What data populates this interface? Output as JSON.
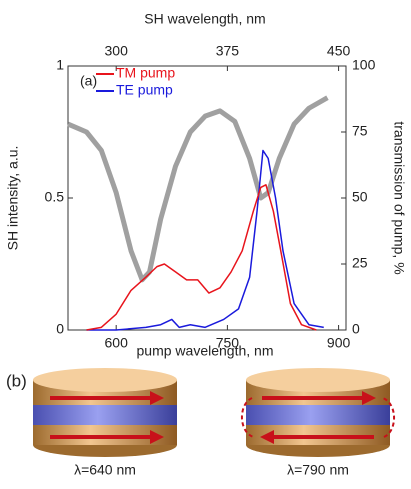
{
  "chart_data": {
    "type": "line",
    "xlabel": "pump wavelength, nm",
    "x2label": "SH wavelength, nm",
    "ylabel": "SH intensity, a.u.",
    "y2label": "transmission of pump, %",
    "annotations": {
      "panel_a": "(a)",
      "panel_b": "(b)",
      "left": "λ=640 nm",
      "right": "λ=790 nm"
    },
    "xlim": [
      535,
      910
    ],
    "xticks": [
      600,
      750,
      900
    ],
    "x2lim": [
      267.5,
      455
    ],
    "x2ticks": [
      300,
      375,
      450
    ],
    "ylim": [
      0,
      1
    ],
    "yticks": [
      0,
      0.5,
      1
    ],
    "y2lim": [
      0,
      100
    ],
    "y2ticks": [
      0,
      25,
      50,
      75,
      100
    ],
    "legend": "upper left",
    "series": [
      {
        "name": "TM pump",
        "color": "#e8141c",
        "x": [
          560,
          580,
          600,
          620,
          640,
          655,
          665,
          680,
          695,
          710,
          725,
          740,
          755,
          770,
          785,
          795,
          802,
          812,
          822,
          835,
          850,
          870
        ],
        "values": [
          0,
          0.01,
          0.06,
          0.15,
          0.2,
          0.24,
          0.25,
          0.22,
          0.19,
          0.19,
          0.14,
          0.16,
          0.22,
          0.3,
          0.45,
          0.54,
          0.55,
          0.45,
          0.3,
          0.1,
          0.02,
          0
        ]
      },
      {
        "name": "TE pump",
        "color": "#1a1adc",
        "x": [
          560,
          600,
          640,
          660,
          675,
          685,
          700,
          720,
          745,
          765,
          780,
          790,
          798,
          805,
          815,
          825,
          840,
          860,
          880
        ],
        "values": [
          0,
          0,
          0.01,
          0.02,
          0.04,
          0.01,
          0.02,
          0.01,
          0.04,
          0.08,
          0.2,
          0.45,
          0.68,
          0.65,
          0.5,
          0.3,
          0.1,
          0.02,
          0.01
        ]
      },
      {
        "color": "#a0a0a0",
        "axis": "y2",
        "x": [
          535,
          560,
          580,
          600,
          620,
          635,
          645,
          660,
          680,
          700,
          720,
          740,
          760,
          780,
          795,
          805,
          820,
          840,
          860,
          885
        ],
        "values": [
          78,
          75,
          68,
          52,
          30,
          19,
          22,
          42,
          62,
          75,
          81,
          83,
          79,
          65,
          50,
          52,
          65,
          78,
          84,
          88
        ]
      }
    ]
  }
}
